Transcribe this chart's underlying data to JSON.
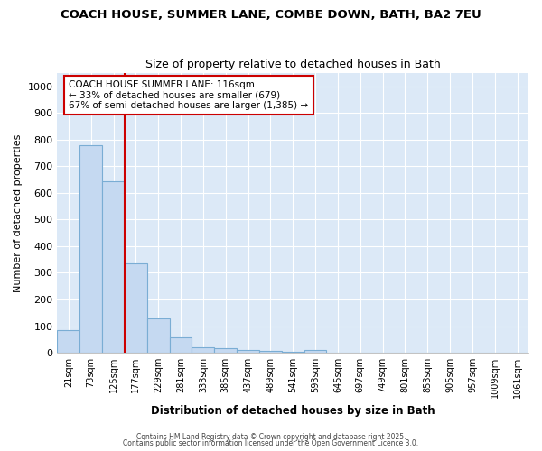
{
  "title": "COACH HOUSE, SUMMER LANE, COMBE DOWN, BATH, BA2 7EU",
  "subtitle": "Size of property relative to detached houses in Bath",
  "xlabel": "Distribution of detached houses by size in Bath",
  "ylabel": "Number of detached properties",
  "categories": [
    "21sqm",
    "73sqm",
    "125sqm",
    "177sqm",
    "229sqm",
    "281sqm",
    "333sqm",
    "385sqm",
    "437sqm",
    "489sqm",
    "541sqm",
    "593sqm",
    "645sqm",
    "697sqm",
    "749sqm",
    "801sqm",
    "853sqm",
    "905sqm",
    "957sqm",
    "1009sqm",
    "1061sqm"
  ],
  "values": [
    85,
    780,
    645,
    335,
    130,
    57,
    22,
    18,
    10,
    7,
    5,
    10,
    0,
    0,
    0,
    0,
    0,
    0,
    0,
    0,
    0
  ],
  "bar_color": "#c5d9f1",
  "bar_edge_color": "#7aadd4",
  "bar_edge_width": 0.8,
  "red_line_x": 2.5,
  "annotation_title": "COACH HOUSE SUMMER LANE: 116sqm",
  "annotation_line1": "← 33% of detached houses are smaller (679)",
  "annotation_line2": "67% of semi-detached houses are larger (1,385) →",
  "annotation_box_color": "#ffffff",
  "annotation_box_edge_color": "#cc0000",
  "ylim": [
    0,
    1050
  ],
  "yticks": [
    0,
    100,
    200,
    300,
    400,
    500,
    600,
    700,
    800,
    900,
    1000
  ],
  "bg_color": "#dce9f7",
  "fig_color": "#ffffff",
  "grid_color": "#ffffff",
  "footer1": "Contains HM Land Registry data © Crown copyright and database right 2025.",
  "footer2": "Contains public sector information licensed under the Open Government Licence 3.0."
}
